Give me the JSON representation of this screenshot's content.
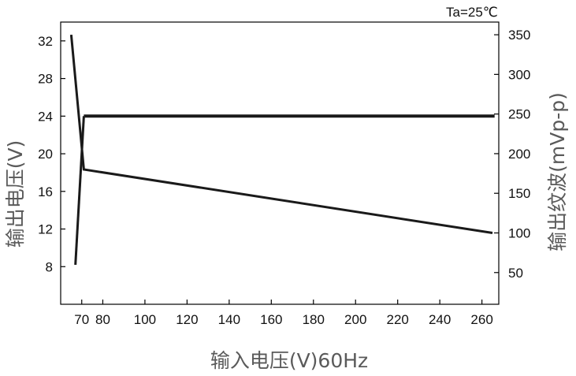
{
  "chart_data": {
    "type": "line",
    "annotation": "Ta=25℃",
    "xlabel": "输入电压(V)60Hz",
    "ylabel_left": "输出电压(V)",
    "ylabel_right": "输出纹波(mVp-p)",
    "x_ticks": [
      70,
      80,
      100,
      120,
      140,
      160,
      180,
      200,
      220,
      240,
      260
    ],
    "y_left_ticks": [
      8,
      12,
      16,
      20,
      24,
      28,
      32
    ],
    "y_right_ticks": [
      50,
      100,
      150,
      200,
      250,
      300,
      350
    ],
    "xlim": [
      60,
      268
    ],
    "ylim_left": [
      4,
      34
    ],
    "ylim_right": [
      10,
      366
    ],
    "grid": false,
    "series": [
      {
        "axis": "left",
        "stroke_width": 4,
        "points": [
          [
            71,
            24
          ],
          [
            266,
            24
          ]
        ]
      },
      {
        "axis": "left",
        "stroke_width": 3,
        "points": [
          [
            67,
            8.2
          ],
          [
            71,
            24
          ]
        ]
      },
      {
        "axis": "right",
        "stroke_width": 3,
        "points": [
          [
            65,
            350
          ],
          [
            71,
            180
          ],
          [
            265,
            100
          ]
        ]
      }
    ],
    "colors": {
      "line": "#1a1a1a",
      "frame": "#000000"
    }
  }
}
